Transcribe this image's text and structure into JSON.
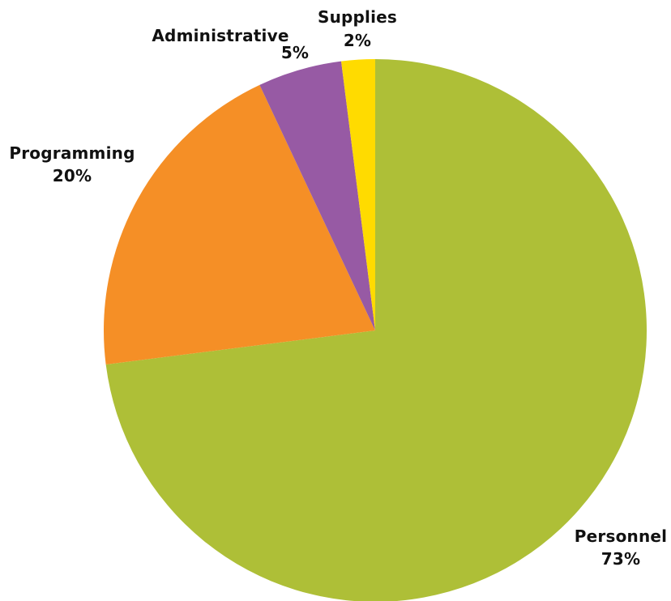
{
  "chart_data": {
    "type": "pie",
    "title": "",
    "start_angle_deg": 0,
    "direction": "clockwise",
    "slices": [
      {
        "label": "Personnel",
        "value": 73,
        "value_label": "73%",
        "color": "#AEBF37"
      },
      {
        "label": "Programming",
        "value": 20,
        "value_label": "20%",
        "color": "#F58F26"
      },
      {
        "label": "Administrative",
        "value": 5,
        "value_label": "5%",
        "color": "#975AA4"
      },
      {
        "label": "Supplies",
        "value": 2,
        "value_label": "2%",
        "color": "#FFDB00"
      }
    ]
  }
}
